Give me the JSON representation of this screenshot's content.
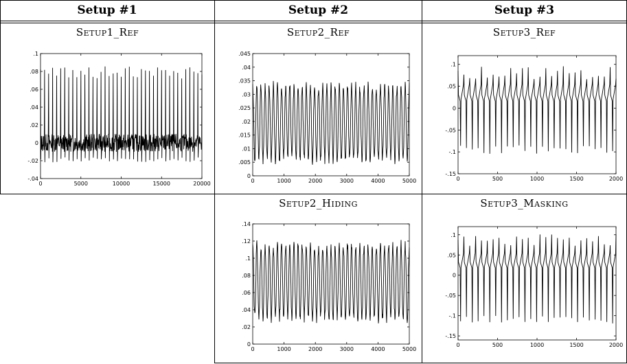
{
  "headers": [
    "Setup #1",
    "Setup #2",
    "Setup #3"
  ],
  "plot_titles": {
    "setup1_ref": "Setup1_Ref",
    "setup2_ref": "Setup2_Ref",
    "setup3_ref": "Setup3_Ref",
    "setup2_hiding": "Setup2_Hiding",
    "setup3_masking": "Setup3_Masking"
  },
  "chart_data": [
    {
      "id": "setup1_ref",
      "type": "line",
      "title": "Setup1_Ref",
      "xlim": [
        0,
        20000
      ],
      "ylim": [
        -0.04,
        0.1
      ],
      "xticks": [
        0,
        5000,
        10000,
        15000,
        20000
      ],
      "yticks": [
        -0.04,
        -0.02,
        0,
        0.02,
        0.04,
        0.06,
        0.08,
        0.1
      ],
      "series": [
        {
          "shape": "sharp periodic spikes near 0.07-0.09 over a noisy baseline near 0, dips to about -0.025",
          "peaks_count": 40,
          "peak_approx": 0.08,
          "baseline_approx": 0.0,
          "trough_approx": -0.022
        }
      ]
    },
    {
      "id": "setup2_ref",
      "type": "line",
      "title": "Setup2_Ref",
      "xlim": [
        0,
        5000
      ],
      "ylim": [
        0,
        0.045
      ],
      "xticks": [
        0,
        1000,
        2000,
        3000,
        4000,
        5000
      ],
      "yticks": [
        0,
        0.005,
        0.01,
        0.015,
        0.02,
        0.025,
        0.03,
        0.035,
        0.04,
        0.045
      ],
      "series": [
        {
          "shape": "dense oscillation between about 0.005 and 0.035",
          "cycles": 38,
          "peak_approx": 0.033,
          "trough_approx": 0.006
        }
      ]
    },
    {
      "id": "setup3_ref",
      "type": "line",
      "title": "Setup3_Ref",
      "xlim": [
        0,
        2000
      ],
      "ylim": [
        -0.15,
        0.12
      ],
      "xticks": [
        0,
        500,
        1000,
        1500,
        2000
      ],
      "yticks": [
        -0.15,
        -0.1,
        -0.05,
        0,
        0.05,
        0.1
      ],
      "series": [
        {
          "shape": "periodic sharp peaks near 0.07-0.1 with deep troughs near -0.1",
          "cycles": 27,
          "peak_approx": 0.075,
          "trough_approx": -0.105
        }
      ]
    },
    {
      "id": "setup2_hiding",
      "type": "line",
      "title": "Setup2_Hiding",
      "xlim": [
        0,
        5000
      ],
      "ylim": [
        0,
        0.14
      ],
      "xticks": [
        0,
        1000,
        2000,
        3000,
        4000,
        5000
      ],
      "yticks": [
        0,
        0.02,
        0.04,
        0.06,
        0.08,
        0.1,
        0.12,
        0.14
      ],
      "series": [
        {
          "shape": "regular oscillation between about 0.03 and 0.115",
          "cycles": 38,
          "peak_approx": 0.115,
          "trough_approx": 0.03
        }
      ]
    },
    {
      "id": "setup3_masking",
      "type": "line",
      "title": "Setup3_Masking",
      "xlim": [
        0,
        2000
      ],
      "ylim": [
        -0.16,
        0.12
      ],
      "xticks": [
        0,
        500,
        1000,
        1500,
        2000
      ],
      "yticks": [
        -0.15,
        -0.1,
        -0.05,
        0,
        0.05,
        0.1
      ],
      "series": [
        {
          "shape": "periodic sharp peaks near 0.07-0.1 with deep troughs near -0.12",
          "cycles": 27,
          "peak_approx": 0.08,
          "trough_approx": -0.12
        }
      ]
    }
  ]
}
